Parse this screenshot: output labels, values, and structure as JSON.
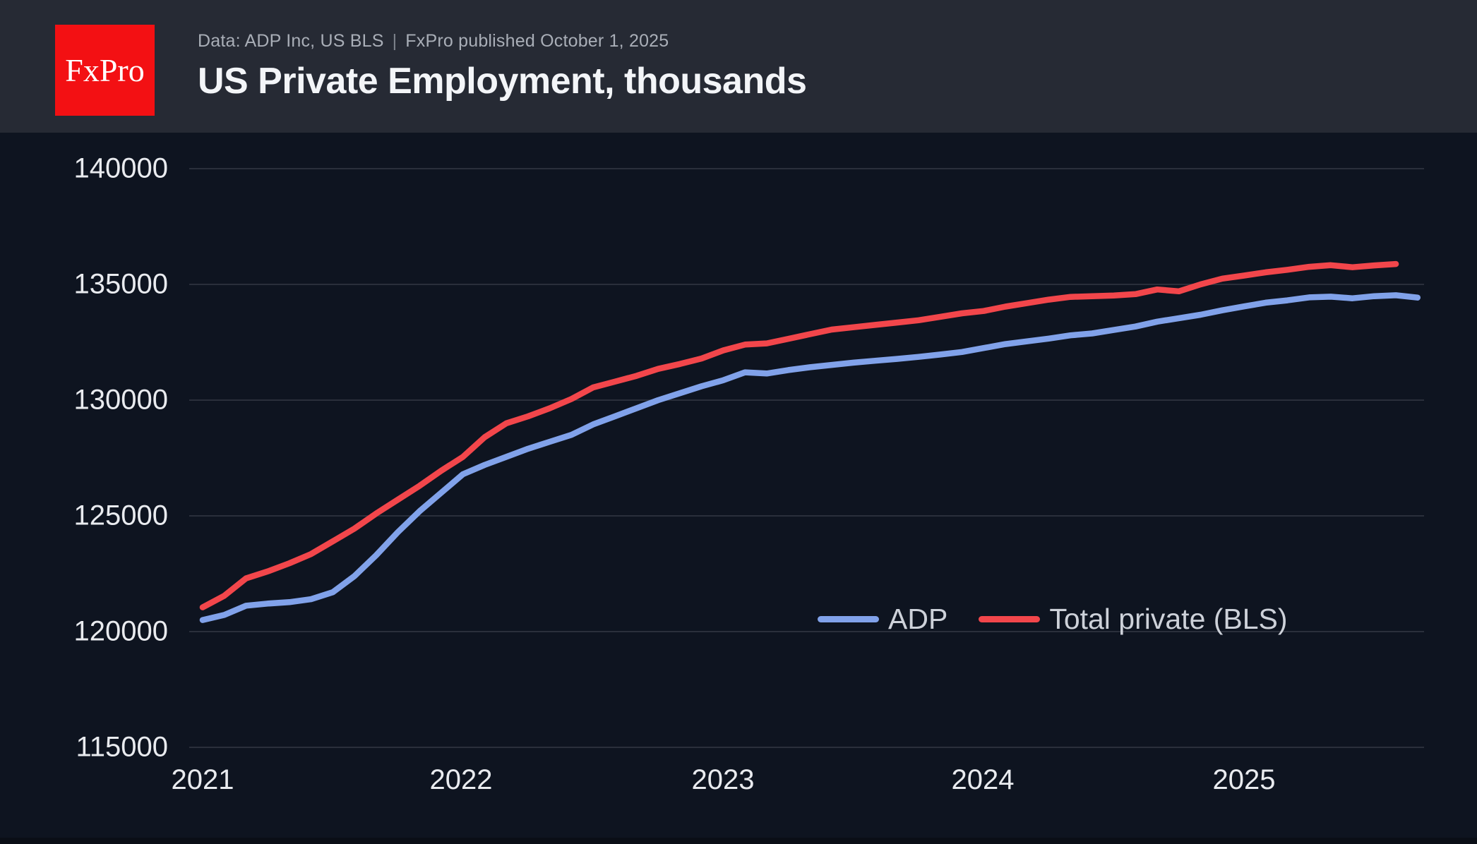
{
  "header": {
    "logo_text": "FxPro",
    "logo_color": "#f31013",
    "source_note": "Data: ADP Inc, US BLS",
    "separator": "|",
    "published_note": "FxPro published October 1, 2025",
    "title": "US Private Employment, thousands"
  },
  "chart_data": {
    "type": "line",
    "title": "US Private Employment, thousands",
    "xlabel": "",
    "ylabel": "",
    "ylim": [
      115000,
      140000
    ],
    "grid": "horizontal-only",
    "legend_position": "inside-bottom-right",
    "ytick_labels": [
      "140000",
      "135000",
      "130000",
      "125000",
      "120000",
      "115000"
    ],
    "xtick_labels": [
      "2021",
      "2022",
      "2023",
      "2024",
      "2025"
    ],
    "x": [
      "2021-01",
      "2021-02",
      "2021-03",
      "2021-04",
      "2021-05",
      "2021-06",
      "2021-07",
      "2021-08",
      "2021-09",
      "2021-10",
      "2021-11",
      "2021-12",
      "2022-01",
      "2022-02",
      "2022-03",
      "2022-04",
      "2022-05",
      "2022-06",
      "2022-07",
      "2022-08",
      "2022-09",
      "2022-10",
      "2022-11",
      "2022-12",
      "2023-01",
      "2023-02",
      "2023-03",
      "2023-04",
      "2023-05",
      "2023-06",
      "2023-07",
      "2023-08",
      "2023-09",
      "2023-10",
      "2023-11",
      "2023-12",
      "2024-01",
      "2024-02",
      "2024-03",
      "2024-04",
      "2024-05",
      "2024-06",
      "2024-07",
      "2024-08",
      "2024-09",
      "2024-10",
      "2024-11",
      "2024-12",
      "2025-01",
      "2025-02",
      "2025-03",
      "2025-04",
      "2025-05",
      "2025-06",
      "2025-07",
      "2025-08",
      "2025-09"
    ],
    "series": [
      {
        "name": "ADP",
        "color": "#81a2ea",
        "values": [
          120500,
          120720,
          121120,
          121210,
          121270,
          121400,
          121700,
          122400,
          123300,
          124300,
          125200,
          126000,
          126800,
          127200,
          127550,
          127900,
          128200,
          128500,
          128950,
          129300,
          129650,
          130000,
          130300,
          130600,
          130860,
          131200,
          131150,
          131300,
          131420,
          131520,
          131620,
          131700,
          131780,
          131870,
          131970,
          132080,
          132250,
          132420,
          132540,
          132660,
          132800,
          132880,
          133030,
          133180,
          133390,
          133540,
          133690,
          133880,
          134050,
          134210,
          134310,
          134440,
          134470,
          134400,
          134490,
          134530,
          134430
        ]
      },
      {
        "name": "Total private (BLS)",
        "color": "#f2464b",
        "values": [
          121050,
          121550,
          122300,
          122600,
          122950,
          123350,
          123900,
          124450,
          125100,
          125700,
          126300,
          126950,
          127550,
          128400,
          129000,
          129300,
          129650,
          130050,
          130550,
          130800,
          131050,
          131350,
          131560,
          131800,
          132150,
          132400,
          132450,
          132650,
          132850,
          133050,
          133150,
          133250,
          133350,
          133450,
          133600,
          133750,
          133850,
          134040,
          134190,
          134340,
          134460,
          134490,
          134520,
          134580,
          134780,
          134700,
          135000,
          135250,
          135380,
          135520,
          135630,
          135760,
          135830,
          135740,
          135820,
          135880
        ]
      }
    ]
  }
}
